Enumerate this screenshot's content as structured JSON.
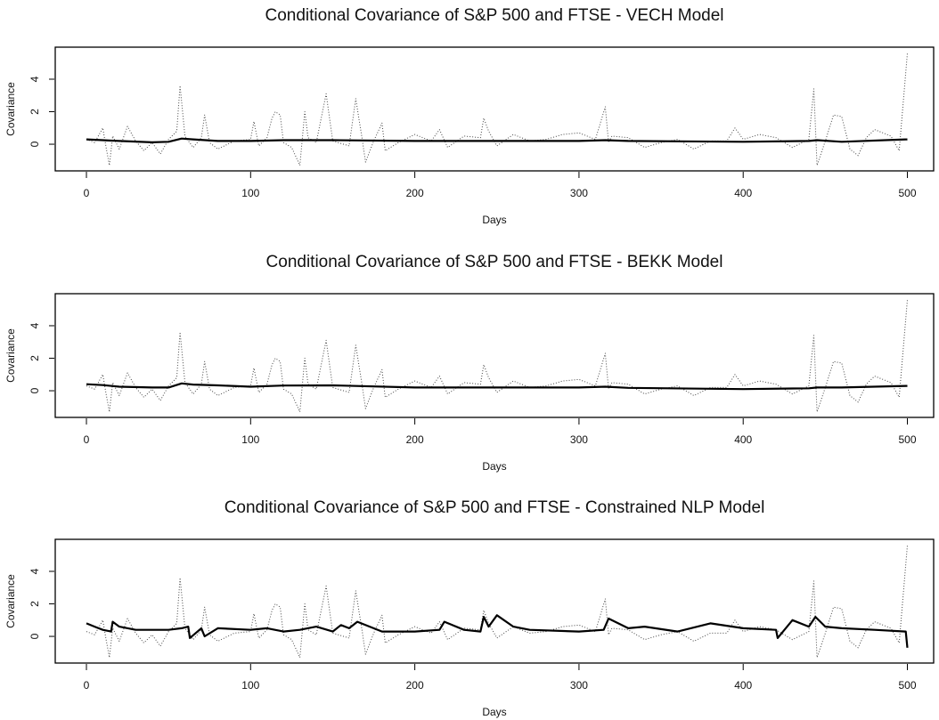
{
  "chart_data": [
    {
      "type": "line",
      "title": "Conditional Covariance of S&P 500 and FTSE - VECH Model",
      "xlabel": "Days",
      "ylabel": "Covariance",
      "xlim": [
        -19,
        516
      ],
      "ylim": [
        -1.64,
        5.97
      ],
      "xticks": [
        0,
        100,
        200,
        300,
        400,
        500
      ],
      "yticks": [
        0,
        2,
        4
      ],
      "series": [
        {
          "color": "#444444",
          "style": "dotted",
          "x": [
            0,
            5,
            10,
            12,
            14,
            16,
            20,
            25,
            30,
            35,
            40,
            45,
            50,
            55,
            57,
            60,
            65,
            70,
            72,
            75,
            80,
            90,
            100,
            102,
            105,
            110,
            113,
            115,
            118,
            120,
            125,
            130,
            133,
            135,
            140,
            146,
            150,
            160,
            164,
            168,
            170,
            175,
            180,
            182,
            190,
            200,
            210,
            215,
            220,
            230,
            240,
            242,
            245,
            250,
            260,
            270,
            280,
            290,
            300,
            310,
            316,
            318,
            320,
            330,
            340,
            350,
            360,
            370,
            380,
            390,
            395,
            400,
            410,
            420,
            430,
            440,
            443,
            445,
            450,
            455,
            460,
            465,
            470,
            475,
            480,
            490,
            495,
            500
          ],
          "values": [
            0.3,
            0.1,
            1.0,
            -0.2,
            -1.3,
            0.5,
            -0.3,
            1.1,
            0.2,
            -0.4,
            0.1,
            -0.6,
            0.3,
            0.8,
            3.6,
            0.5,
            -0.2,
            0.4,
            1.8,
            0.1,
            -0.3,
            0.2,
            0.3,
            1.4,
            -0.1,
            0.4,
            1.6,
            2.0,
            1.8,
            0.1,
            -0.2,
            -1.3,
            2.0,
            0.4,
            0.1,
            3.1,
            0.2,
            -0.1,
            2.8,
            0.3,
            -1.1,
            0.2,
            1.3,
            -0.4,
            0.1,
            0.6,
            0.2,
            0.9,
            -0.2,
            0.5,
            0.4,
            1.6,
            0.8,
            -0.1,
            0.6,
            0.2,
            0.3,
            0.6,
            0.7,
            0.3,
            2.3,
            0.1,
            0.5,
            0.4,
            -0.2,
            0.1,
            0.3,
            -0.3,
            0.2,
            0.2,
            1.0,
            0.3,
            0.6,
            0.4,
            -0.2,
            0.3,
            3.4,
            -1.3,
            0.2,
            1.8,
            1.7,
            -0.3,
            -0.7,
            0.4,
            0.9,
            0.5,
            -0.4,
            5.6
          ]
        },
        {
          "color": "#000000",
          "style": "solid",
          "x": [
            0,
            10,
            20,
            40,
            50,
            58,
            65,
            80,
            100,
            120,
            150,
            200,
            250,
            300,
            316,
            330,
            400,
            440,
            445,
            460,
            500
          ],
          "values": [
            0.3,
            0.25,
            0.2,
            0.12,
            0.15,
            0.35,
            0.3,
            0.2,
            0.2,
            0.25,
            0.25,
            0.2,
            0.2,
            0.2,
            0.25,
            0.2,
            0.15,
            0.2,
            0.25,
            0.15,
            0.3
          ]
        }
      ]
    },
    {
      "type": "line",
      "title": "Conditional Covariance of S&P 500 and FTSE - BEKK Model",
      "xlabel": "Days",
      "ylabel": "Covariance",
      "xlim": [
        -19,
        516
      ],
      "ylim": [
        -1.64,
        5.97
      ],
      "xticks": [
        0,
        100,
        200,
        300,
        400,
        500
      ],
      "yticks": [
        0,
        2,
        4
      ],
      "series": [
        {
          "color": "#444444",
          "style": "dotted",
          "x": [
            0,
            5,
            10,
            12,
            14,
            16,
            20,
            25,
            30,
            35,
            40,
            45,
            50,
            55,
            57,
            60,
            65,
            70,
            72,
            75,
            80,
            90,
            100,
            102,
            105,
            110,
            113,
            115,
            118,
            120,
            125,
            130,
            133,
            135,
            140,
            146,
            150,
            160,
            164,
            168,
            170,
            175,
            180,
            182,
            190,
            200,
            210,
            215,
            220,
            230,
            240,
            242,
            245,
            250,
            260,
            270,
            280,
            290,
            300,
            310,
            316,
            318,
            320,
            330,
            340,
            350,
            360,
            370,
            380,
            390,
            395,
            400,
            410,
            420,
            430,
            440,
            443,
            445,
            450,
            455,
            460,
            465,
            470,
            475,
            480,
            490,
            495,
            500
          ],
          "values": [
            0.3,
            0.1,
            1.0,
            -0.2,
            -1.3,
            0.5,
            -0.3,
            1.1,
            0.2,
            -0.4,
            0.1,
            -0.6,
            0.3,
            0.8,
            3.6,
            0.5,
            -0.2,
            0.4,
            1.8,
            0.1,
            -0.3,
            0.2,
            0.3,
            1.4,
            -0.1,
            0.4,
            1.6,
            2.0,
            1.8,
            0.1,
            -0.2,
            -1.3,
            2.0,
            0.4,
            0.1,
            3.1,
            0.2,
            -0.1,
            2.8,
            0.3,
            -1.1,
            0.2,
            1.3,
            -0.4,
            0.1,
            0.6,
            0.2,
            0.9,
            -0.2,
            0.5,
            0.4,
            1.6,
            0.8,
            -0.1,
            0.6,
            0.2,
            0.3,
            0.6,
            0.7,
            0.3,
            2.3,
            0.1,
            0.5,
            0.4,
            -0.2,
            0.1,
            0.3,
            -0.3,
            0.2,
            0.2,
            1.0,
            0.3,
            0.6,
            0.4,
            -0.2,
            0.3,
            3.4,
            -1.3,
            0.2,
            1.8,
            1.7,
            -0.3,
            -0.7,
            0.4,
            0.9,
            0.5,
            -0.4,
            5.6
          ]
        },
        {
          "color": "#000000",
          "style": "solid",
          "x": [
            0,
            10,
            20,
            40,
            50,
            58,
            65,
            80,
            100,
            120,
            150,
            200,
            250,
            300,
            316,
            330,
            400,
            440,
            445,
            460,
            500
          ],
          "values": [
            0.4,
            0.35,
            0.25,
            0.2,
            0.2,
            0.45,
            0.38,
            0.33,
            0.25,
            0.32,
            0.33,
            0.2,
            0.2,
            0.2,
            0.25,
            0.18,
            0.1,
            0.15,
            0.2,
            0.2,
            0.3
          ]
        }
      ]
    },
    {
      "type": "line",
      "title": "Conditional Covariance of S&P 500 and FTSE - Constrained NLP Model",
      "xlabel": "Days",
      "ylabel": "Covariance",
      "xlim": [
        -19,
        516
      ],
      "ylim": [
        -1.64,
        5.97
      ],
      "xticks": [
        0,
        100,
        200,
        300,
        400,
        500
      ],
      "yticks": [
        0,
        2,
        4
      ],
      "series": [
        {
          "color": "#444444",
          "style": "dotted",
          "x": [
            0,
            5,
            10,
            12,
            14,
            16,
            20,
            25,
            30,
            35,
            40,
            45,
            50,
            55,
            57,
            60,
            65,
            70,
            72,
            75,
            80,
            90,
            100,
            102,
            105,
            110,
            113,
            115,
            118,
            120,
            125,
            130,
            133,
            135,
            140,
            146,
            150,
            160,
            164,
            168,
            170,
            175,
            180,
            182,
            190,
            200,
            210,
            215,
            220,
            230,
            240,
            242,
            245,
            250,
            260,
            270,
            280,
            290,
            300,
            310,
            316,
            318,
            320,
            330,
            340,
            350,
            360,
            370,
            380,
            390,
            395,
            400,
            410,
            420,
            430,
            440,
            443,
            445,
            450,
            455,
            460,
            465,
            470,
            475,
            480,
            490,
            495,
            500
          ],
          "values": [
            0.3,
            0.1,
            1.0,
            -0.2,
            -1.3,
            0.5,
            -0.3,
            1.1,
            0.2,
            -0.4,
            0.1,
            -0.6,
            0.3,
            0.8,
            3.6,
            0.5,
            -0.2,
            0.4,
            1.8,
            0.1,
            -0.3,
            0.2,
            0.3,
            1.4,
            -0.1,
            0.4,
            1.6,
            2.0,
            1.8,
            0.1,
            -0.2,
            -1.3,
            2.0,
            0.4,
            0.1,
            3.1,
            0.2,
            -0.1,
            2.8,
            0.3,
            -1.1,
            0.2,
            1.3,
            -0.4,
            0.1,
            0.6,
            0.2,
            0.9,
            -0.2,
            0.5,
            0.4,
            1.6,
            0.8,
            -0.1,
            0.6,
            0.2,
            0.3,
            0.6,
            0.7,
            0.3,
            2.3,
            0.1,
            0.5,
            0.4,
            -0.2,
            0.1,
            0.3,
            -0.3,
            0.2,
            0.2,
            1.0,
            0.3,
            0.6,
            0.4,
            -0.2,
            0.3,
            3.4,
            -1.3,
            0.2,
            1.8,
            1.7,
            -0.3,
            -0.7,
            0.4,
            0.9,
            0.5,
            -0.4,
            5.6
          ]
        },
        {
          "color": "#000000",
          "style": "solid",
          "x": [
            0,
            5,
            10,
            15,
            16,
            20,
            30,
            40,
            50,
            58,
            62,
            63,
            70,
            72,
            80,
            100,
            110,
            120,
            130,
            140,
            150,
            155,
            160,
            165,
            180,
            200,
            215,
            218,
            230,
            240,
            242,
            245,
            250,
            260,
            270,
            300,
            315,
            318,
            330,
            340,
            360,
            380,
            400,
            420,
            421,
            430,
            440,
            444,
            450,
            460,
            480,
            499,
            500
          ],
          "values": [
            0.8,
            0.6,
            0.4,
            0.3,
            0.9,
            0.6,
            0.4,
            0.4,
            0.4,
            0.5,
            0.6,
            -0.1,
            0.5,
            0.0,
            0.5,
            0.4,
            0.5,
            0.3,
            0.4,
            0.6,
            0.3,
            0.7,
            0.5,
            0.9,
            0.3,
            0.3,
            0.4,
            0.9,
            0.4,
            0.3,
            1.2,
            0.6,
            1.3,
            0.6,
            0.4,
            0.3,
            0.4,
            1.1,
            0.5,
            0.6,
            0.3,
            0.8,
            0.5,
            0.4,
            -0.1,
            1.0,
            0.6,
            1.2,
            0.6,
            0.5,
            0.4,
            0.3,
            -0.7
          ]
        }
      ]
    }
  ]
}
